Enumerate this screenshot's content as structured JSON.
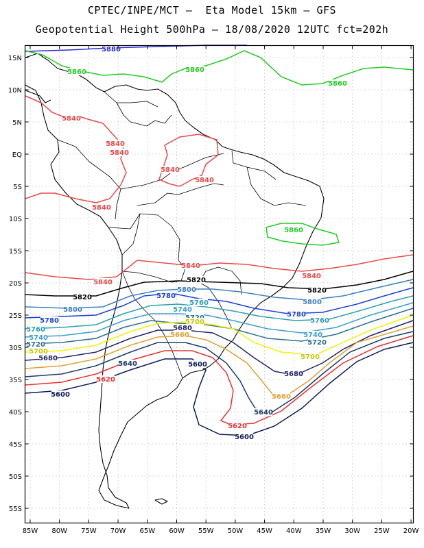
{
  "header": {
    "line1": "CPTEC/INPE/MCT –  Eta Model 15km – GFS",
    "line2": "Geopotential Height 500hPa – 18/08/2020 12UTC fct=202h"
  },
  "axes": {
    "lat_labels": [
      "15N",
      "10N",
      "5N",
      "EQ",
      "5S",
      "10S",
      "15S",
      "20S",
      "25S",
      "30S",
      "35S",
      "40S",
      "45S",
      "50S",
      "55S"
    ],
    "lon_labels": [
      "85W",
      "80W",
      "75W",
      "70W",
      "65W",
      "60W",
      "55W",
      "50W",
      "45W",
      "40W",
      "35W",
      "30W",
      "25W",
      "20W"
    ]
  },
  "map_data": {
    "variable": "Geopotential Height 500hPa",
    "contour_levels": [
      {
        "value": "5880",
        "color": "#2b2bd6"
      },
      {
        "value": "5860",
        "color": "#22cc22"
      },
      {
        "value": "5840",
        "color": "#e84848"
      },
      {
        "value": "5820",
        "color": "#000000"
      },
      {
        "value": "5800",
        "color": "#3a7fbf"
      },
      {
        "value": "5780",
        "color": "#1a3fd6"
      },
      {
        "value": "5760",
        "color": "#2a9fb3"
      },
      {
        "value": "5740",
        "color": "#3a9fcf"
      },
      {
        "value": "5720",
        "color": "#2a6f8f"
      },
      {
        "value": "5700",
        "color": "#f2f200"
      },
      {
        "value": "5680",
        "color": "#222266"
      },
      {
        "value": "5660",
        "color": "#e0a030"
      },
      {
        "value": "5640",
        "color": "#1a3a6a"
      },
      {
        "value": "5620",
        "color": "#e83030"
      },
      {
        "value": "5600",
        "color": "#0a1a5a"
      }
    ],
    "contour_labels": [
      {
        "text": "5880",
        "color": "#2b2bd6"
      },
      {
        "text": "5860",
        "color": "#22cc22"
      },
      {
        "text": "5860",
        "color": "#22cc22"
      },
      {
        "text": "5860",
        "color": "#22cc22"
      },
      {
        "text": "5860",
        "color": "#22cc22"
      },
      {
        "text": "5840",
        "color": "#e84848"
      },
      {
        "text": "5840",
        "color": "#e84848"
      },
      {
        "text": "5840",
        "color": "#e84848"
      },
      {
        "text": "5840",
        "color": "#e84848"
      },
      {
        "text": "5840",
        "color": "#e84848"
      },
      {
        "text": "5840",
        "color": "#e84848"
      },
      {
        "text": "5840",
        "color": "#e84848"
      },
      {
        "text": "5840",
        "color": "#e84848"
      },
      {
        "text": "5840",
        "color": "#e84848"
      },
      {
        "text": "5820",
        "color": "#000000"
      },
      {
        "text": "5820",
        "color": "#000000"
      },
      {
        "text": "5820",
        "color": "#000000"
      },
      {
        "text": "5800",
        "color": "#3a7fbf"
      },
      {
        "text": "5800",
        "color": "#3a7fbf"
      },
      {
        "text": "5800",
        "color": "#3a7fbf"
      },
      {
        "text": "5780",
        "color": "#1a3fd6"
      },
      {
        "text": "5780",
        "color": "#1a3fd6"
      },
      {
        "text": "5780",
        "color": "#1a3fd6"
      },
      {
        "text": "5760",
        "color": "#2a9fb3"
      },
      {
        "text": "5760",
        "color": "#2a9fb3"
      },
      {
        "text": "5760",
        "color": "#2a9fb3"
      },
      {
        "text": "5740",
        "color": "#3a9fcf"
      },
      {
        "text": "5740",
        "color": "#3a9fcf"
      },
      {
        "text": "5740",
        "color": "#3a9fcf"
      },
      {
        "text": "5720",
        "color": "#2a6f8f"
      },
      {
        "text": "5720",
        "color": "#2a6f8f"
      },
      {
        "text": "5720",
        "color": "#2a6f8f"
      },
      {
        "text": "5700",
        "color": "#c8c800"
      },
      {
        "text": "5700",
        "color": "#c8c800"
      },
      {
        "text": "5700",
        "color": "#c8c800"
      },
      {
        "text": "5680",
        "color": "#222266"
      },
      {
        "text": "5680",
        "color": "#222266"
      },
      {
        "text": "5680",
        "color": "#222266"
      },
      {
        "text": "5660",
        "color": "#e0a030"
      },
      {
        "text": "5660",
        "color": "#e0a030"
      },
      {
        "text": "5640",
        "color": "#1a3a6a"
      },
      {
        "text": "5640",
        "color": "#1a3a6a"
      },
      {
        "text": "5620",
        "color": "#e83030"
      },
      {
        "text": "5620",
        "color": "#e83030"
      },
      {
        "text": "5600",
        "color": "#0a1a5a"
      },
      {
        "text": "5600",
        "color": "#0a1a5a"
      },
      {
        "text": "5600",
        "color": "#0a1a5a"
      }
    ],
    "colors": {
      "frame": "#000000",
      "grid": "#9a9a9a",
      "coast": "#000000",
      "background": "#ffffff"
    }
  }
}
